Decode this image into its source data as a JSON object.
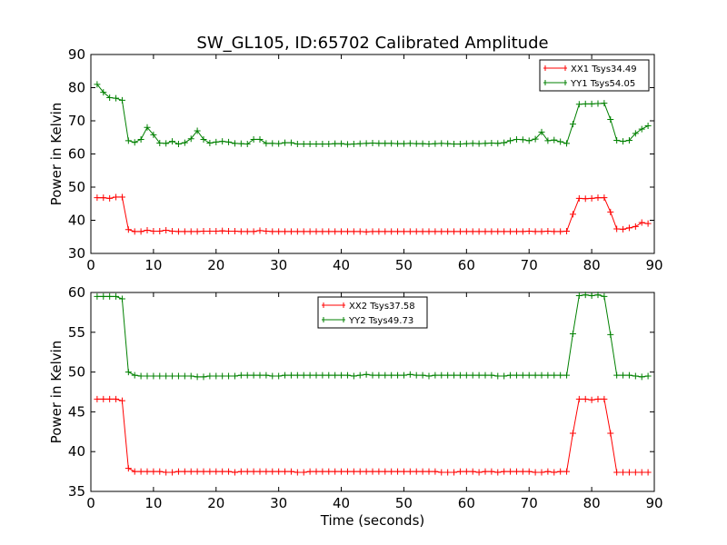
{
  "chart_data": [
    {
      "type": "line",
      "title": "SW_GL105, ID:65702 Calibrated Amplitude",
      "xlabel": "",
      "ylabel": "Power in Kelvin",
      "xlim": [
        0,
        90
      ],
      "ylim": [
        30,
        90
      ],
      "xticks": [
        "0",
        "10",
        "20",
        "30",
        "40",
        "50",
        "60",
        "70",
        "80",
        "90"
      ],
      "yticks": [
        "30",
        "40",
        "50",
        "60",
        "70",
        "80",
        "90"
      ],
      "legend_position": "top-right",
      "grid": false,
      "series": [
        {
          "name": "XX1 Tsys34.49",
          "color": "#ff0000",
          "marker": "+",
          "x": [
            1,
            2,
            3,
            4,
            5,
            6,
            7,
            8,
            9,
            10,
            11,
            12,
            13,
            14,
            15,
            16,
            17,
            18,
            19,
            20,
            21,
            22,
            23,
            24,
            25,
            26,
            27,
            28,
            29,
            30,
            31,
            32,
            33,
            34,
            35,
            36,
            37,
            38,
            39,
            40,
            41,
            42,
            43,
            44,
            45,
            46,
            47,
            48,
            49,
            50,
            51,
            52,
            53,
            54,
            55,
            56,
            57,
            58,
            59,
            60,
            61,
            62,
            63,
            64,
            65,
            66,
            67,
            68,
            69,
            70,
            71,
            72,
            73,
            74,
            75,
            76,
            77,
            78,
            79,
            80,
            81,
            82,
            83,
            84,
            85,
            86,
            87,
            88,
            89
          ],
          "y": [
            46.8,
            46.8,
            46.6,
            47.0,
            47.0,
            37.2,
            36.6,
            36.6,
            37.0,
            36.7,
            36.7,
            37.0,
            36.7,
            36.6,
            36.6,
            36.6,
            36.6,
            36.7,
            36.7,
            36.7,
            36.8,
            36.7,
            36.7,
            36.6,
            36.6,
            36.6,
            36.9,
            36.7,
            36.6,
            36.6,
            36.6,
            36.6,
            36.6,
            36.6,
            36.6,
            36.6,
            36.6,
            36.6,
            36.6,
            36.6,
            36.6,
            36.6,
            36.6,
            36.5,
            36.6,
            36.6,
            36.6,
            36.6,
            36.6,
            36.6,
            36.6,
            36.6,
            36.6,
            36.6,
            36.6,
            36.6,
            36.6,
            36.6,
            36.6,
            36.6,
            36.6,
            36.6,
            36.6,
            36.6,
            36.6,
            36.6,
            36.6,
            36.6,
            36.6,
            36.7,
            36.6,
            36.6,
            36.7,
            36.6,
            36.6,
            36.7,
            41.8,
            46.6,
            46.5,
            46.6,
            46.8,
            46.8,
            42.5,
            37.4,
            37.3,
            37.7,
            38.1,
            39.3,
            39.0
          ]
        },
        {
          "name": "YY1 Tsys54.05",
          "color": "#008000",
          "marker": "+",
          "x": [
            1,
            2,
            3,
            4,
            5,
            6,
            7,
            8,
            9,
            10,
            11,
            12,
            13,
            14,
            15,
            16,
            17,
            18,
            19,
            20,
            21,
            22,
            23,
            24,
            25,
            26,
            27,
            28,
            29,
            30,
            31,
            32,
            33,
            34,
            35,
            36,
            37,
            38,
            39,
            40,
            41,
            42,
            43,
            44,
            45,
            46,
            47,
            48,
            49,
            50,
            51,
            52,
            53,
            54,
            55,
            56,
            57,
            58,
            59,
            60,
            61,
            62,
            63,
            64,
            65,
            66,
            67,
            68,
            69,
            70,
            71,
            72,
            73,
            74,
            75,
            76,
            77,
            78,
            79,
            80,
            81,
            82,
            83,
            84,
            85,
            86,
            87,
            88,
            89
          ],
          "y": [
            81.0,
            78.6,
            77.0,
            76.8,
            76.2,
            64.0,
            63.5,
            64.4,
            68.0,
            65.8,
            63.3,
            63.2,
            63.8,
            63.0,
            63.4,
            64.6,
            67.0,
            64.4,
            63.3,
            63.6,
            63.8,
            63.6,
            63.2,
            63.1,
            63.0,
            64.4,
            64.4,
            63.2,
            63.2,
            63.1,
            63.4,
            63.4,
            63.0,
            63.0,
            63.0,
            63.0,
            63.0,
            63.0,
            63.1,
            63.1,
            62.9,
            63.0,
            63.1,
            63.2,
            63.3,
            63.2,
            63.2,
            63.2,
            63.1,
            63.1,
            63.2,
            63.1,
            63.1,
            63.0,
            63.1,
            63.2,
            63.1,
            63.0,
            63.0,
            63.1,
            63.2,
            63.1,
            63.2,
            63.3,
            63.2,
            63.4,
            64.0,
            64.4,
            64.3,
            64.0,
            64.5,
            66.6,
            64.0,
            64.2,
            63.7,
            63.2,
            69.0,
            75.0,
            75.1,
            75.1,
            75.2,
            75.3,
            70.4,
            64.1,
            63.8,
            64.1,
            66.2,
            67.5,
            68.5
          ]
        }
      ]
    },
    {
      "type": "line",
      "title": "",
      "xlabel": "Time (seconds)",
      "ylabel": "Power in Kelvin",
      "xlim": [
        0,
        90
      ],
      "ylim": [
        35,
        60
      ],
      "xticks": [
        "0",
        "10",
        "20",
        "30",
        "40",
        "50",
        "60",
        "70",
        "80",
        "90"
      ],
      "yticks": [
        "35",
        "40",
        "45",
        "50",
        "55",
        "60"
      ],
      "legend_position": "top-center",
      "grid": false,
      "series": [
        {
          "name": "XX2 Tsys37.58",
          "color": "#ff0000",
          "marker": "+",
          "x": [
            1,
            2,
            3,
            4,
            5,
            6,
            7,
            8,
            9,
            10,
            11,
            12,
            13,
            14,
            15,
            16,
            17,
            18,
            19,
            20,
            21,
            22,
            23,
            24,
            25,
            26,
            27,
            28,
            29,
            30,
            31,
            32,
            33,
            34,
            35,
            36,
            37,
            38,
            39,
            40,
            41,
            42,
            43,
            44,
            45,
            46,
            47,
            48,
            49,
            50,
            51,
            52,
            53,
            54,
            55,
            56,
            57,
            58,
            59,
            60,
            61,
            62,
            63,
            64,
            65,
            66,
            67,
            68,
            69,
            70,
            71,
            72,
            73,
            74,
            75,
            76,
            77,
            78,
            79,
            80,
            81,
            82,
            83,
            84,
            85,
            86,
            87,
            88,
            89
          ],
          "y": [
            46.6,
            46.6,
            46.6,
            46.6,
            46.4,
            37.9,
            37.5,
            37.5,
            37.5,
            37.5,
            37.5,
            37.4,
            37.4,
            37.5,
            37.5,
            37.5,
            37.5,
            37.5,
            37.5,
            37.5,
            37.5,
            37.5,
            37.4,
            37.5,
            37.5,
            37.5,
            37.5,
            37.5,
            37.5,
            37.5,
            37.5,
            37.5,
            37.4,
            37.4,
            37.5,
            37.5,
            37.5,
            37.5,
            37.5,
            37.5,
            37.5,
            37.5,
            37.5,
            37.5,
            37.5,
            37.5,
            37.5,
            37.5,
            37.5,
            37.5,
            37.5,
            37.5,
            37.5,
            37.5,
            37.5,
            37.4,
            37.4,
            37.4,
            37.5,
            37.5,
            37.5,
            37.4,
            37.5,
            37.5,
            37.4,
            37.5,
            37.5,
            37.5,
            37.5,
            37.5,
            37.4,
            37.4,
            37.5,
            37.4,
            37.5,
            37.5,
            42.3,
            46.6,
            46.6,
            46.5,
            46.6,
            46.6,
            42.3,
            37.4,
            37.4,
            37.4,
            37.4,
            37.4,
            37.4
          ]
        },
        {
          "name": "YY2 Tsys49.73",
          "color": "#008000",
          "marker": "+",
          "x": [
            1,
            2,
            3,
            4,
            5,
            6,
            7,
            8,
            9,
            10,
            11,
            12,
            13,
            14,
            15,
            16,
            17,
            18,
            19,
            20,
            21,
            22,
            23,
            24,
            25,
            26,
            27,
            28,
            29,
            30,
            31,
            32,
            33,
            34,
            35,
            36,
            37,
            38,
            39,
            40,
            41,
            42,
            43,
            44,
            45,
            46,
            47,
            48,
            49,
            50,
            51,
            52,
            53,
            54,
            55,
            56,
            57,
            58,
            59,
            60,
            61,
            62,
            63,
            64,
            65,
            66,
            67,
            68,
            69,
            70,
            71,
            72,
            73,
            74,
            75,
            76,
            77,
            78,
            79,
            80,
            81,
            82,
            83,
            84,
            85,
            86,
            87,
            88,
            89
          ],
          "y": [
            59.5,
            59.5,
            59.5,
            59.5,
            59.2,
            50.0,
            49.6,
            49.5,
            49.5,
            49.5,
            49.5,
            49.5,
            49.5,
            49.5,
            49.5,
            49.5,
            49.4,
            49.4,
            49.5,
            49.5,
            49.5,
            49.5,
            49.5,
            49.6,
            49.6,
            49.6,
            49.6,
            49.6,
            49.5,
            49.5,
            49.6,
            49.6,
            49.6,
            49.6,
            49.6,
            49.6,
            49.6,
            49.6,
            49.6,
            49.6,
            49.6,
            49.5,
            49.6,
            49.7,
            49.6,
            49.6,
            49.6,
            49.6,
            49.6,
            49.6,
            49.7,
            49.6,
            49.6,
            49.5,
            49.6,
            49.6,
            49.6,
            49.6,
            49.6,
            49.6,
            49.6,
            49.6,
            49.6,
            49.6,
            49.5,
            49.5,
            49.6,
            49.6,
            49.6,
            49.6,
            49.6,
            49.6,
            49.6,
            49.6,
            49.6,
            49.6,
            54.8,
            59.6,
            59.7,
            59.6,
            59.7,
            59.5,
            54.7,
            49.6,
            49.6,
            49.6,
            49.5,
            49.4,
            49.5
          ]
        }
      ]
    }
  ]
}
